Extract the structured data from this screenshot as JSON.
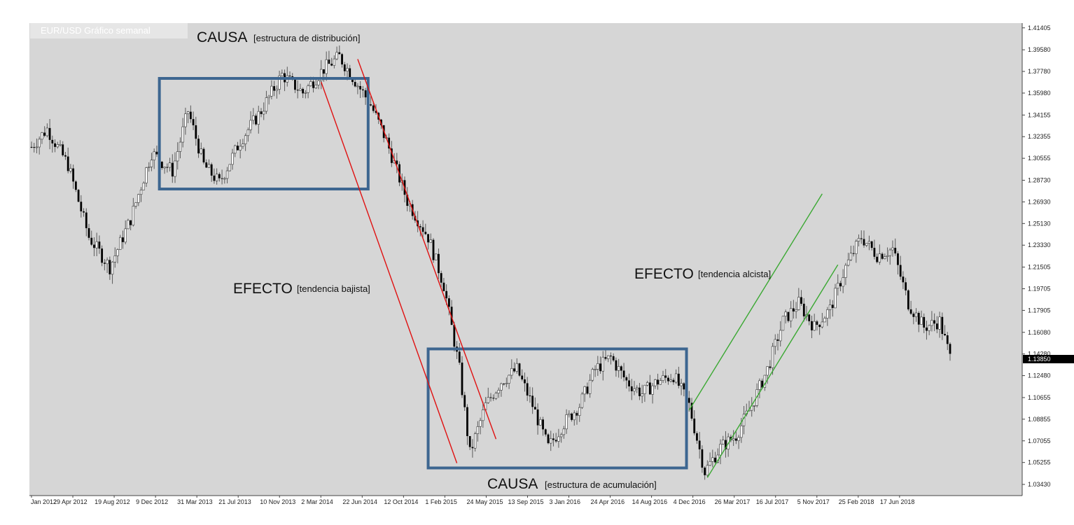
{
  "chart_data": {
    "type": "candlestick",
    "title": "EUR/USD Gráfico semanal",
    "xlabel": "",
    "ylabel": "",
    "ylim": [
      1.025,
      1.418
    ],
    "grid": false,
    "current_price": "1.13850",
    "y_ticks": [
      "1.41405",
      "1.39580",
      "1.37780",
      "1.35980",
      "1.34155",
      "1.32355",
      "1.30555",
      "1.28730",
      "1.26930",
      "1.25130",
      "1.23330",
      "1.21505",
      "1.19705",
      "1.17905",
      "1.16080",
      "1.14280",
      "1.12480",
      "1.10655",
      "1.08855",
      "1.07055",
      "1.05255",
      "1.03430"
    ],
    "x_ticks": [
      "Jan 2012",
      "29 Apr 2012",
      "19 Aug 2012",
      "9 Dec 2012",
      "31 Mar 2013",
      "21 Jul 2013",
      "10 Nov 2013",
      "2 Mar 2014",
      "22 Jun 2014",
      "12 Oct 2014",
      "1 Feb 2015",
      "24 May 2015",
      "13 Sep 2015",
      "3 Jan 2016",
      "24 Apr 2016",
      "14 Aug 2016",
      "4 Dec 2016",
      "26 Mar 2017",
      "16 Jul 2017",
      "5 Nov 2017",
      "25 Feb 2018",
      "17 Jun 2018"
    ],
    "price_path_keypoints": [
      {
        "week": 0,
        "price": 1.315
      },
      {
        "week": 6,
        "price": 1.33
      },
      {
        "week": 14,
        "price": 1.3
      },
      {
        "week": 22,
        "price": 1.24
      },
      {
        "week": 30,
        "price": 1.215
      },
      {
        "week": 38,
        "price": 1.255
      },
      {
        "week": 46,
        "price": 1.31
      },
      {
        "week": 54,
        "price": 1.295
      },
      {
        "week": 60,
        "price": 1.345
      },
      {
        "week": 66,
        "price": 1.3
      },
      {
        "week": 72,
        "price": 1.285
      },
      {
        "week": 80,
        "price": 1.32
      },
      {
        "week": 88,
        "price": 1.345
      },
      {
        "week": 96,
        "price": 1.375
      },
      {
        "week": 104,
        "price": 1.36
      },
      {
        "week": 112,
        "price": 1.38
      },
      {
        "week": 118,
        "price": 1.39
      },
      {
        "week": 124,
        "price": 1.37
      },
      {
        "week": 130,
        "price": 1.35
      },
      {
        "week": 136,
        "price": 1.32
      },
      {
        "week": 144,
        "price": 1.27
      },
      {
        "week": 152,
        "price": 1.24
      },
      {
        "week": 158,
        "price": 1.2
      },
      {
        "week": 164,
        "price": 1.13
      },
      {
        "week": 168,
        "price": 1.06
      },
      {
        "week": 174,
        "price": 1.1
      },
      {
        "week": 180,
        "price": 1.12
      },
      {
        "week": 186,
        "price": 1.13
      },
      {
        "week": 192,
        "price": 1.1
      },
      {
        "week": 198,
        "price": 1.065
      },
      {
        "week": 204,
        "price": 1.085
      },
      {
        "week": 210,
        "price": 1.1
      },
      {
        "week": 216,
        "price": 1.13
      },
      {
        "week": 222,
        "price": 1.14
      },
      {
        "week": 228,
        "price": 1.12
      },
      {
        "week": 234,
        "price": 1.11
      },
      {
        "week": 240,
        "price": 1.12
      },
      {
        "week": 246,
        "price": 1.125
      },
      {
        "week": 252,
        "price": 1.1
      },
      {
        "week": 258,
        "price": 1.045
      },
      {
        "week": 264,
        "price": 1.065
      },
      {
        "week": 270,
        "price": 1.075
      },
      {
        "week": 276,
        "price": 1.1
      },
      {
        "week": 282,
        "price": 1.13
      },
      {
        "week": 288,
        "price": 1.17
      },
      {
        "week": 294,
        "price": 1.185
      },
      {
        "week": 300,
        "price": 1.165
      },
      {
        "week": 306,
        "price": 1.18
      },
      {
        "week": 312,
        "price": 1.215
      },
      {
        "week": 318,
        "price": 1.24
      },
      {
        "week": 324,
        "price": 1.225
      },
      {
        "week": 330,
        "price": 1.23
      },
      {
        "week": 336,
        "price": 1.185
      },
      {
        "week": 342,
        "price": 1.165
      },
      {
        "week": 348,
        "price": 1.17
      },
      {
        "week": 352,
        "price": 1.14
      }
    ],
    "total_weeks": 352,
    "annotations": [
      {
        "kind": "box",
        "label": "causa-distribucion",
        "week_range": [
          49,
          129
        ],
        "price_range": [
          1.28,
          1.372
        ],
        "color": "#3d6690"
      },
      {
        "kind": "box",
        "label": "causa-acumulacion",
        "week_range": [
          152,
          251
        ],
        "price_range": [
          1.048,
          1.147
        ],
        "color": "#3d6690"
      },
      {
        "kind": "line",
        "label": "bajista-superior",
        "from": {
          "week": 125,
          "price": 1.388
        },
        "to": {
          "week": 178,
          "price": 1.072
        },
        "color": "#e01010"
      },
      {
        "kind": "line",
        "label": "bajista-inferior",
        "from": {
          "week": 111,
          "price": 1.369
        },
        "to": {
          "week": 163,
          "price": 1.052
        },
        "color": "#e01010"
      },
      {
        "kind": "line",
        "label": "alcista-superior",
        "from": {
          "week": 252,
          "price": 1.096
        },
        "to": {
          "week": 303,
          "price": 1.276
        },
        "color": "#3aa832"
      },
      {
        "kind": "line",
        "label": "alcista-inferior",
        "from": {
          "week": 259,
          "price": 1.04
        },
        "to": {
          "week": 309,
          "price": 1.217
        },
        "color": "#3aa832"
      }
    ],
    "text_annotations": {
      "causa_top_main": "CAUSA",
      "causa_top_sub": "[estructura de distribución]",
      "efecto_bajista_main": "EFECTO",
      "efecto_bajista_sub": "[tendencia bajista]",
      "efecto_alcista_main": "EFECTO",
      "efecto_alcista_sub": "[tendencia alcista]",
      "causa_bottom_main": "CAUSA",
      "causa_bottom_sub": "[estructura de acumulación]"
    }
  },
  "colors": {
    "background": "#d6d6d6",
    "candle": "#000000",
    "wick": "#555555",
    "axis_bg": "#ffffff",
    "price_tag": "#000000"
  }
}
